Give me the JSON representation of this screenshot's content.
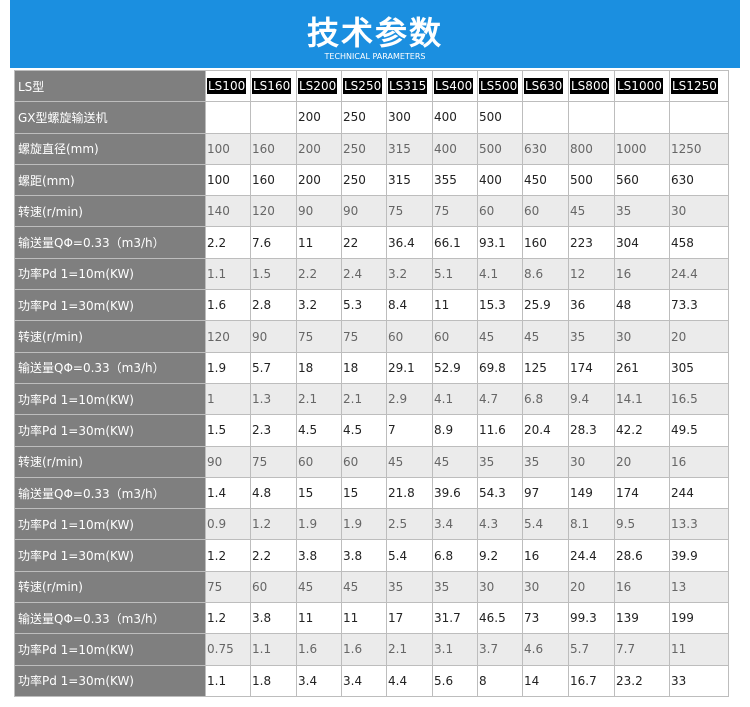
{
  "header": {
    "title": "技术参数",
    "subtitle": "TECHNICAL PARAMETERS"
  },
  "table": {
    "header": [
      "LS型",
      "LS100",
      "LS160",
      "LS200",
      "LS250",
      "LS315",
      "LS400",
      "LS500",
      "LS630",
      "LS800",
      "LS1000",
      "LS1250"
    ],
    "rows": [
      [
        "GX型螺旋输送机",
        null,
        null,
        200,
        250,
        300,
        400,
        500,
        null,
        null,
        null,
        null
      ],
      [
        "螺旋直径(mm)",
        100,
        160,
        200,
        250,
        315,
        400,
        500,
        630,
        800,
        1000,
        1250
      ],
      [
        "螺距(mm)",
        100,
        160,
        200,
        250,
        315,
        355,
        400,
        450,
        500,
        560,
        630
      ],
      [
        "转速(r/min)",
        140,
        120,
        90,
        90,
        75,
        75,
        60,
        60,
        45,
        35,
        30
      ],
      [
        "输送量QΦ=0.33（m3/h）",
        2.2,
        7.6,
        11,
        22,
        36.4,
        66.1,
        93.1,
        160,
        223,
        304,
        458
      ],
      [
        "功率Pd 1=10m(KW)",
        1.1,
        1.5,
        2.2,
        2.4,
        3.2,
        5.1,
        4.1,
        8.6,
        12,
        16,
        24.4
      ],
      [
        "功率Pd 1=30m(KW)",
        1.6,
        2.8,
        3.2,
        5.3,
        8.4,
        11,
        15.3,
        25.9,
        36,
        48,
        73.3
      ],
      [
        "转速(r/min)",
        120,
        90,
        75,
        75,
        60,
        60,
        45,
        45,
        35,
        30,
        20
      ],
      [
        "输送量QΦ=0.33（m3/h）",
        1.9,
        5.7,
        18,
        18,
        29.1,
        52.9,
        69.8,
        125,
        174,
        261,
        305
      ],
      [
        "功率Pd 1=10m(KW)",
        1,
        1.3,
        2.1,
        2.1,
        2.9,
        4.1,
        4.7,
        6.8,
        9.4,
        14.1,
        16.5
      ],
      [
        "功率Pd 1=30m(KW)",
        1.5,
        2.3,
        4.5,
        4.5,
        7,
        8.9,
        11.6,
        20.4,
        28.3,
        42.2,
        49.5
      ],
      [
        "转速(r/min)",
        90,
        75,
        60,
        60,
        45,
        45,
        35,
        35,
        30,
        20,
        16
      ],
      [
        "输送量QΦ=0.33（m3/h）",
        1.4,
        4.8,
        15,
        15,
        21.8,
        39.6,
        54.3,
        97,
        149,
        174,
        244
      ],
      [
        "功率Pd 1=10m(KW)",
        0.9,
        1.2,
        1.9,
        1.9,
        2.5,
        3.4,
        4.3,
        5.4,
        8.1,
        9.5,
        13.3
      ],
      [
        "功率Pd 1=30m(KW)",
        1.2,
        2.2,
        3.8,
        3.8,
        5.4,
        6.8,
        9.2,
        16,
        24.4,
        28.6,
        39.9
      ],
      [
        "转速(r/min)",
        75,
        60,
        45,
        45,
        35,
        35,
        30,
        30,
        20,
        16,
        13
      ],
      [
        "输送量QΦ=0.33（m3/h）",
        1.2,
        3.8,
        11,
        11,
        17,
        31.7,
        46.5,
        73,
        99.3,
        139,
        199
      ],
      [
        "功率Pd 1=10m(KW)",
        0.75,
        1.1,
        1.6,
        1.6,
        2.1,
        3.1,
        3.7,
        4.6,
        5.7,
        7.7,
        11
      ],
      [
        "功率Pd 1=30m(KW)",
        1.1,
        1.8,
        3.4,
        3.4,
        4.4,
        5.6,
        8,
        14,
        16.7,
        23.2,
        33
      ]
    ]
  }
}
